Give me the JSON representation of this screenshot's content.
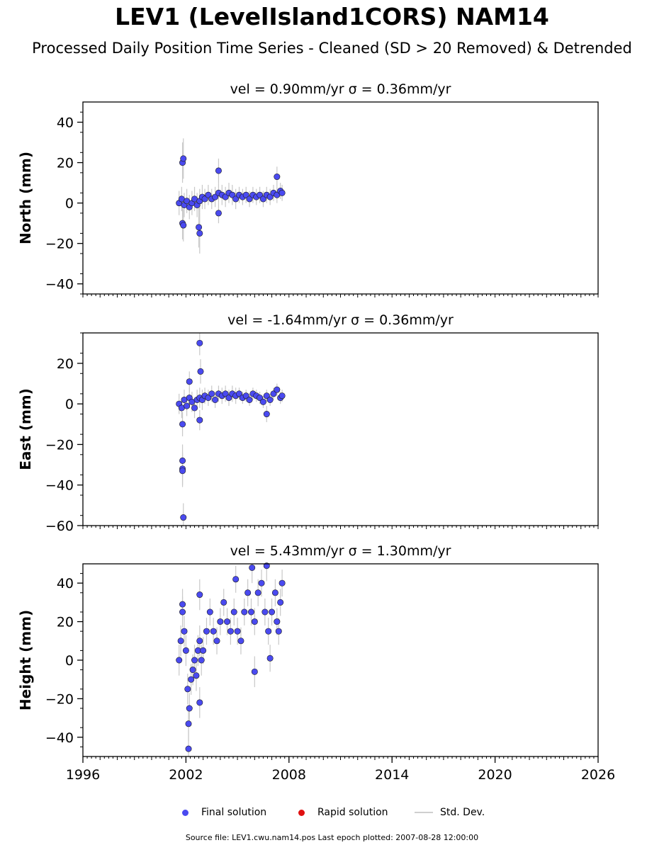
{
  "title": "LEV1 (LevelIsland1CORS) NAM14",
  "subtitle": "Processed Daily Position Time Series - Cleaned (SD > 20 Removed) & Detrended",
  "legend": {
    "final_label": "Final solution",
    "rapid_label": "Rapid solution",
    "std_label": "Std. Dev.",
    "final_color": "#4a4af0",
    "rapid_color": "#e01010",
    "std_color": "#c8c8c8"
  },
  "footer": "Source file: LEV1.cwu.nam14.pos  Last epoch plotted: 2007-08-28 12:00:00",
  "chart_data": [
    {
      "type": "scatter",
      "title": "vel = 0.90mm/yr   σ = 0.36mm/yr",
      "ylabel": "North (mm)",
      "xlim": [
        1996,
        2026
      ],
      "ylim": [
        -45,
        50
      ],
      "yticks": [
        -40,
        -20,
        0,
        20,
        40
      ],
      "xticks": [],
      "series": [
        {
          "points": [
            [
              2001.6,
              0
            ],
            [
              2001.75,
              2
            ],
            [
              2001.9,
              -1
            ],
            [
              2002.05,
              1
            ],
            [
              2002.2,
              -2
            ],
            [
              2002.35,
              0
            ],
            [
              2002.5,
              2
            ],
            [
              2002.65,
              -1
            ],
            [
              2002.8,
              1
            ],
            [
              2002.95,
              3
            ],
            [
              2003.1,
              2
            ],
            [
              2003.3,
              4
            ],
            [
              2003.5,
              2
            ],
            [
              2003.7,
              3
            ],
            [
              2003.9,
              5
            ],
            [
              2004.1,
              4
            ],
            [
              2004.3,
              3
            ],
            [
              2004.5,
              5
            ],
            [
              2004.7,
              4
            ],
            [
              2004.9,
              2
            ],
            [
              2005.1,
              4
            ],
            [
              2005.3,
              3
            ],
            [
              2005.5,
              4
            ],
            [
              2005.7,
              2
            ],
            [
              2005.9,
              4
            ],
            [
              2006.1,
              3
            ],
            [
              2006.3,
              4
            ],
            [
              2006.5,
              2
            ],
            [
              2006.7,
              4
            ],
            [
              2006.9,
              3
            ],
            [
              2007.1,
              5
            ],
            [
              2007.3,
              4
            ],
            [
              2007.5,
              6
            ],
            [
              2007.6,
              5
            ],
            [
              2001.8,
              20
            ],
            [
              2001.85,
              22
            ],
            [
              2001.8,
              -10
            ],
            [
              2001.85,
              -11
            ],
            [
              2002.75,
              -12
            ],
            [
              2002.8,
              -15
            ],
            [
              2003.9,
              16
            ],
            [
              2007.3,
              13
            ],
            [
              2003.9,
              -5
            ]
          ],
          "error": [
            6,
            6,
            6,
            6,
            6,
            6,
            6,
            6,
            6,
            6,
            5,
            5,
            5,
            5,
            5,
            5,
            5,
            5,
            5,
            5,
            4,
            4,
            4,
            4,
            4,
            4,
            4,
            4,
            4,
            4,
            4,
            4,
            4,
            4,
            10,
            10,
            8,
            8,
            10,
            10,
            6,
            5,
            5
          ]
        }
      ]
    },
    {
      "type": "scatter",
      "title": "vel = -1.64mm/yr   σ = 0.36mm/yr",
      "ylabel": "East (mm)",
      "xlim": [
        1996,
        2026
      ],
      "ylim": [
        -60,
        35
      ],
      "yticks": [
        -60,
        -40,
        -20,
        0,
        20
      ],
      "xticks": [],
      "series": [
        {
          "points": [
            [
              2001.6,
              0
            ],
            [
              2001.75,
              -2
            ],
            [
              2001.9,
              2
            ],
            [
              2002.05,
              -1
            ],
            [
              2002.2,
              3
            ],
            [
              2002.35,
              1
            ],
            [
              2002.5,
              -2
            ],
            [
              2002.65,
              2
            ],
            [
              2002.8,
              3
            ],
            [
              2002.95,
              2
            ],
            [
              2003.1,
              4
            ],
            [
              2003.3,
              3
            ],
            [
              2003.5,
              5
            ],
            [
              2003.7,
              2
            ],
            [
              2003.9,
              5
            ],
            [
              2004.1,
              4
            ],
            [
              2004.3,
              5
            ],
            [
              2004.5,
              3
            ],
            [
              2004.7,
              5
            ],
            [
              2004.9,
              4
            ],
            [
              2005.1,
              5
            ],
            [
              2005.3,
              3
            ],
            [
              2005.5,
              4
            ],
            [
              2005.7,
              2
            ],
            [
              2005.9,
              5
            ],
            [
              2006.1,
              4
            ],
            [
              2006.3,
              3
            ],
            [
              2006.5,
              1
            ],
            [
              2006.7,
              4
            ],
            [
              2006.9,
              2
            ],
            [
              2007.1,
              5
            ],
            [
              2007.3,
              7
            ],
            [
              2007.5,
              3
            ],
            [
              2007.6,
              4
            ],
            [
              2001.8,
              -28
            ],
            [
              2001.8,
              -32
            ],
            [
              2001.8,
              -33
            ],
            [
              2001.85,
              -56
            ],
            [
              2002.8,
              30
            ],
            [
              2002.85,
              16
            ],
            [
              2002.2,
              11
            ],
            [
              2001.8,
              -10
            ],
            [
              2002.8,
              -8
            ],
            [
              2006.7,
              -5
            ]
          ],
          "error": [
            5,
            5,
            5,
            5,
            5,
            5,
            5,
            5,
            5,
            5,
            4,
            4,
            4,
            4,
            4,
            4,
            4,
            4,
            4,
            4,
            3,
            3,
            3,
            3,
            3,
            3,
            3,
            3,
            3,
            3,
            3,
            3,
            3,
            3,
            8,
            8,
            8,
            7,
            6,
            6,
            5,
            6,
            5,
            4
          ]
        }
      ]
    },
    {
      "type": "scatter",
      "title": "vel = 5.43mm/yr   σ = 1.30mm/yr",
      "ylabel": "Height (mm)",
      "xlim": [
        1996,
        2026
      ],
      "ylim": [
        -50,
        50
      ],
      "yticks": [
        -40,
        -20,
        0,
        20,
        40
      ],
      "xticks": [
        1996,
        2002,
        2008,
        2014,
        2020,
        2026
      ],
      "series": [
        {
          "points": [
            [
              2001.6,
              0
            ],
            [
              2001.7,
              10
            ],
            [
              2001.8,
              25
            ],
            [
              2001.9,
              15
            ],
            [
              2002.0,
              5
            ],
            [
              2002.1,
              -15
            ],
            [
              2002.2,
              -25
            ],
            [
              2002.3,
              -10
            ],
            [
              2002.4,
              -5
            ],
            [
              2002.5,
              0
            ],
            [
              2002.6,
              -8
            ],
            [
              2002.7,
              5
            ],
            [
              2002.8,
              10
            ],
            [
              2002.9,
              0
            ],
            [
              2003.0,
              5
            ],
            [
              2003.2,
              15
            ],
            [
              2003.4,
              25
            ],
            [
              2003.6,
              15
            ],
            [
              2003.8,
              10
            ],
            [
              2004.0,
              20
            ],
            [
              2004.2,
              30
            ],
            [
              2004.4,
              20
            ],
            [
              2004.6,
              15
            ],
            [
              2004.8,
              25
            ],
            [
              2005.0,
              15
            ],
            [
              2005.2,
              10
            ],
            [
              2005.4,
              25
            ],
            [
              2005.6,
              35
            ],
            [
              2005.8,
              25
            ],
            [
              2006.0,
              20
            ],
            [
              2006.2,
              35
            ],
            [
              2006.4,
              40
            ],
            [
              2006.6,
              25
            ],
            [
              2006.8,
              15
            ],
            [
              2007.0,
              25
            ],
            [
              2007.2,
              35
            ],
            [
              2007.3,
              20
            ],
            [
              2007.4,
              15
            ],
            [
              2007.5,
              30
            ],
            [
              2007.6,
              40
            ],
            [
              2002.15,
              -46
            ],
            [
              2002.15,
              -33
            ],
            [
              2002.8,
              -22
            ],
            [
              2002.8,
              34
            ],
            [
              2006.0,
              -6
            ],
            [
              2006.9,
              1
            ],
            [
              2005.85,
              48
            ],
            [
              2006.7,
              49
            ],
            [
              2004.9,
              42
            ],
            [
              2001.8,
              29
            ]
          ],
          "error": [
            8,
            8,
            8,
            8,
            8,
            8,
            8,
            8,
            8,
            8,
            8,
            8,
            8,
            8,
            7,
            7,
            7,
            7,
            7,
            7,
            7,
            7,
            7,
            7,
            7,
            7,
            7,
            7,
            7,
            7,
            7,
            7,
            7,
            7,
            7,
            7,
            7,
            7,
            7,
            7,
            10,
            9,
            8,
            8,
            8,
            7,
            8,
            8,
            7,
            8
          ]
        }
      ]
    }
  ]
}
